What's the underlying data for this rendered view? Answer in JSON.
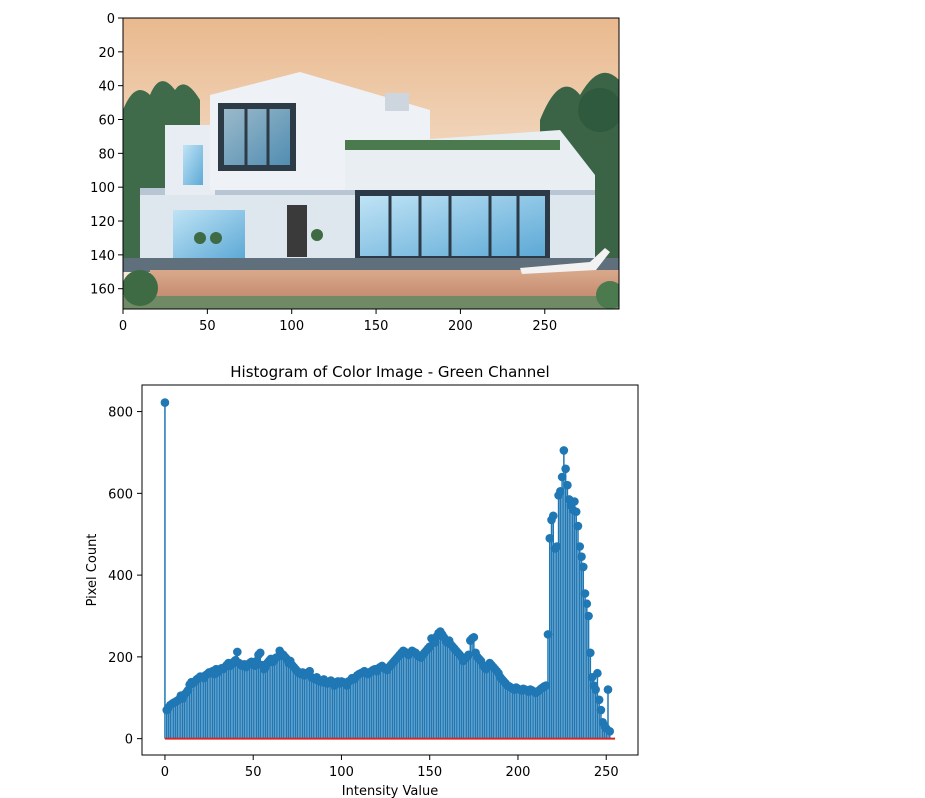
{
  "chart_data": [
    {
      "type": "image",
      "subject": "modern two-storey white house with large glass windows, terrace planters and a reflecting pool under a peach sky",
      "xlim": [
        0,
        294
      ],
      "ylim": [
        172,
        0
      ],
      "xticks": [
        0,
        50,
        100,
        150,
        200,
        250
      ],
      "yticks": [
        0,
        20,
        40,
        60,
        80,
        100,
        120,
        140,
        160
      ]
    },
    {
      "type": "stem",
      "title": "Histogram of Color Image - Green Channel",
      "xlabel": "Intensity Value",
      "ylabel": "Pixel Count",
      "xlim": [
        -13,
        268
      ],
      "ylim": [
        -40,
        865
      ],
      "xticks": [
        0,
        50,
        100,
        150,
        200,
        250
      ],
      "yticks": [
        0,
        200,
        400,
        600,
        800
      ],
      "grid": false,
      "colors": {
        "stem": "#1f77b4",
        "baseline": "#d62728"
      },
      "x_range": [
        0,
        255
      ],
      "values": [
        822,
        70,
        76,
        82,
        85,
        88,
        90,
        93,
        96,
        105,
        98,
        108,
        112,
        118,
        132,
        138,
        136,
        140,
        145,
        148,
        152,
        150,
        148,
        155,
        158,
        162,
        160,
        165,
        158,
        170,
        162,
        168,
        172,
        170,
        175,
        180,
        185,
        178,
        182,
        188,
        192,
        212,
        185,
        180,
        178,
        182,
        175,
        180,
        185,
        188,
        182,
        178,
        190,
        205,
        210,
        180,
        170,
        175,
        185,
        190,
        195,
        188,
        192,
        198,
        200,
        215,
        208,
        205,
        200,
        195,
        185,
        190,
        180,
        175,
        170,
        165,
        160,
        158,
        162,
        155,
        160,
        158,
        165,
        150,
        148,
        145,
        150,
        142,
        140,
        138,
        145,
        140,
        135,
        138,
        142,
        135,
        130,
        138,
        140,
        135,
        140,
        138,
        135,
        130,
        140,
        142,
        148,
        145,
        150,
        155,
        158,
        160,
        162,
        165,
        160,
        158,
        162,
        165,
        168,
        170,
        165,
        172,
        175,
        178,
        172,
        170,
        168,
        175,
        180,
        185,
        190,
        195,
        200,
        205,
        210,
        215,
        212,
        208,
        205,
        210,
        215,
        212,
        210,
        205,
        200,
        198,
        205,
        210,
        215,
        220,
        225,
        245,
        240,
        235,
        250,
        258,
        262,
        255,
        248,
        240,
        235,
        240,
        230,
        225,
        220,
        215,
        210,
        205,
        200,
        190,
        195,
        200,
        205,
        240,
        245,
        248,
        210,
        200,
        195,
        190,
        180,
        175,
        170,
        178,
        185,
        180,
        175,
        170,
        165,
        160,
        150,
        145,
        140,
        135,
        130,
        128,
        125,
        122,
        120,
        125,
        122,
        120,
        118,
        122,
        120,
        118,
        115,
        120,
        118,
        115,
        112,
        115,
        118,
        122,
        125,
        128,
        130,
        255,
        490,
        535,
        545,
        465,
        470,
        595,
        605,
        640,
        705,
        660,
        620,
        585,
        570,
        560,
        580,
        555,
        520,
        470,
        445,
        420,
        355,
        330,
        300,
        210,
        150,
        130,
        120,
        160,
        95,
        70,
        40,
        32,
        25,
        120,
        18
      ]
    }
  ]
}
